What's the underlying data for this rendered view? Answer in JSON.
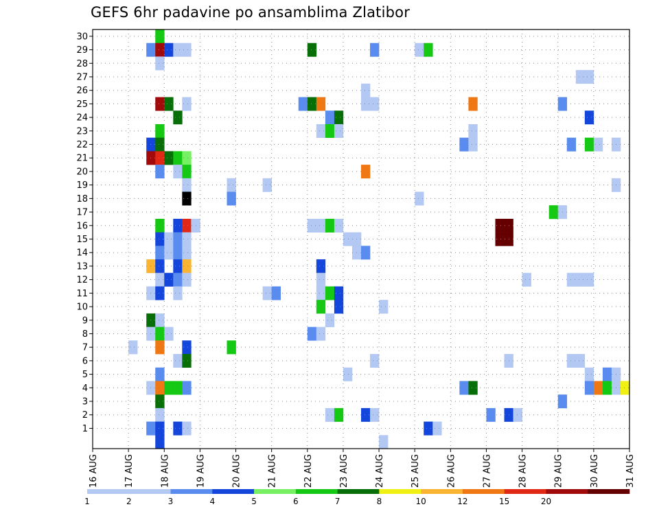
{
  "chart_data": {
    "type": "heatmap",
    "title": "GEFS 6hr padavine po ansamblima Zlatibor",
    "x_ticks": [
      "16 AUG",
      "17 AUG",
      "18 AUG",
      "19 AUG",
      "20 AUG",
      "21 AUG",
      "22 AUG",
      "23 AUG",
      "24 AUG",
      "25 AUG",
      "26 AUG",
      "27 AUG",
      "28 AUG",
      "29 AUG",
      "30 AUG",
      "31 AUG"
    ],
    "x_range_days": [
      16,
      31
    ],
    "y_ticks": [
      1,
      2,
      3,
      4,
      5,
      6,
      7,
      8,
      9,
      10,
      11,
      12,
      13,
      14,
      15,
      16,
      17,
      18,
      19,
      20,
      21,
      22,
      23,
      24,
      25,
      26,
      27,
      28,
      29,
      30
    ],
    "y_range": [
      0,
      30
    ],
    "grid": true,
    "legend_position": "bottom",
    "legend": {
      "labels": [
        "1",
        "2",
        "3",
        "4",
        "5",
        "6",
        "7",
        "8",
        "10",
        "12",
        "15",
        "20"
      ],
      "colors": [
        "#b4c8f4",
        "#5a8cf0",
        "#1446dc",
        "#78f064",
        "#14c814",
        "#086e08",
        "#f0f014",
        "#fab432",
        "#f07814",
        "#e02814",
        "#a00a0a",
        "#640000"
      ]
    },
    "cells_note_units": "time (day of month, 6-hour steps), ensemble member, precipitation class 1-13 (1 = below first legend label)",
    "cells": [
      [
        17.0,
        7,
        1
      ],
      [
        17.5,
        29,
        2
      ],
      [
        17.5,
        22,
        3
      ],
      [
        17.5,
        21,
        11
      ],
      [
        17.5,
        13,
        8
      ],
      [
        17.5,
        11,
        1
      ],
      [
        17.5,
        9,
        6
      ],
      [
        17.5,
        8,
        1
      ],
      [
        17.5,
        4,
        1
      ],
      [
        17.5,
        1,
        2
      ],
      [
        17.75,
        30,
        5
      ],
      [
        17.75,
        29,
        11
      ],
      [
        17.75,
        28,
        1
      ],
      [
        17.75,
        25,
        11
      ],
      [
        17.75,
        23,
        5
      ],
      [
        17.75,
        22,
        6
      ],
      [
        17.75,
        21,
        10
      ],
      [
        17.75,
        20,
        2
      ],
      [
        17.75,
        16,
        5
      ],
      [
        17.75,
        15,
        3
      ],
      [
        17.75,
        14,
        2
      ],
      [
        17.75,
        13,
        3
      ],
      [
        17.75,
        12,
        1
      ],
      [
        17.75,
        11,
        3
      ],
      [
        17.75,
        9,
        1
      ],
      [
        17.75,
        8,
        5
      ],
      [
        17.75,
        7,
        9
      ],
      [
        17.75,
        5,
        2
      ],
      [
        17.75,
        4,
        9
      ],
      [
        17.75,
        3,
        6
      ],
      [
        17.75,
        2,
        1
      ],
      [
        17.75,
        1,
        3
      ],
      [
        17.75,
        0,
        3
      ],
      [
        18.0,
        29,
        3
      ],
      [
        18.0,
        25,
        6
      ],
      [
        18.0,
        21,
        6
      ],
      [
        18.0,
        15,
        1
      ],
      [
        18.0,
        14,
        1
      ],
      [
        18.0,
        12,
        3
      ],
      [
        18.0,
        8,
        1
      ],
      [
        18.0,
        4,
        5
      ],
      [
        18.25,
        29,
        1
      ],
      [
        18.25,
        24,
        6
      ],
      [
        18.25,
        21,
        5
      ],
      [
        18.25,
        20,
        1
      ],
      [
        18.25,
        16,
        3
      ],
      [
        18.25,
        15,
        2
      ],
      [
        18.25,
        14,
        2
      ],
      [
        18.25,
        13,
        3
      ],
      [
        18.25,
        12,
        2
      ],
      [
        18.25,
        11,
        1
      ],
      [
        18.25,
        6,
        1
      ],
      [
        18.25,
        4,
        5
      ],
      [
        18.25,
        1,
        3
      ],
      [
        18.5,
        29,
        1
      ],
      [
        18.5,
        25,
        1
      ],
      [
        18.5,
        21,
        4
      ],
      [
        18.5,
        20,
        5
      ],
      [
        18.5,
        19,
        1
      ],
      [
        18.5,
        18,
        13
      ],
      [
        18.5,
        16,
        10
      ],
      [
        18.5,
        15,
        1
      ],
      [
        18.5,
        14,
        1
      ],
      [
        18.5,
        13,
        8
      ],
      [
        18.5,
        12,
        1
      ],
      [
        18.5,
        7,
        3
      ],
      [
        18.5,
        6,
        6
      ],
      [
        18.5,
        4,
        2
      ],
      [
        18.5,
        1,
        1
      ],
      [
        18.75,
        16,
        1
      ],
      [
        19.75,
        19,
        1
      ],
      [
        19.75,
        18,
        2
      ],
      [
        19.75,
        7,
        5
      ],
      [
        20.75,
        19,
        1
      ],
      [
        20.75,
        11,
        1
      ],
      [
        21.0,
        11,
        2
      ],
      [
        21.75,
        25,
        2
      ],
      [
        22.0,
        29,
        6
      ],
      [
        22.0,
        25,
        6
      ],
      [
        22.0,
        16,
        1
      ],
      [
        22.0,
        8,
        2
      ],
      [
        22.25,
        25,
        9
      ],
      [
        22.25,
        23,
        1
      ],
      [
        22.25,
        16,
        1
      ],
      [
        22.25,
        13,
        3
      ],
      [
        22.25,
        12,
        1
      ],
      [
        22.25,
        11,
        1
      ],
      [
        22.25,
        10,
        5
      ],
      [
        22.25,
        8,
        1
      ],
      [
        22.5,
        24,
        2
      ],
      [
        22.5,
        23,
        5
      ],
      [
        22.5,
        16,
        5
      ],
      [
        22.5,
        11,
        5
      ],
      [
        22.5,
        9,
        1
      ],
      [
        22.5,
        2,
        1
      ],
      [
        22.75,
        24,
        6
      ],
      [
        22.75,
        23,
        1
      ],
      [
        22.75,
        16,
        1
      ],
      [
        22.75,
        11,
        3
      ],
      [
        22.75,
        10,
        3
      ],
      [
        22.75,
        2,
        5
      ],
      [
        23.0,
        15,
        1
      ],
      [
        23.0,
        5,
        1
      ],
      [
        23.25,
        15,
        1
      ],
      [
        23.25,
        14,
        1
      ],
      [
        23.5,
        26,
        1
      ],
      [
        23.5,
        25,
        1
      ],
      [
        23.5,
        20,
        9
      ],
      [
        23.5,
        14,
        2
      ],
      [
        23.5,
        2,
        3
      ],
      [
        23.75,
        29,
        2
      ],
      [
        23.75,
        25,
        1
      ],
      [
        23.75,
        6,
        1
      ],
      [
        23.75,
        2,
        1
      ],
      [
        24.0,
        10,
        1
      ],
      [
        24.0,
        0,
        1
      ],
      [
        25.0,
        29,
        1
      ],
      [
        25.0,
        18,
        1
      ],
      [
        25.25,
        29,
        5
      ],
      [
        25.25,
        1,
        3
      ],
      [
        25.5,
        1,
        1
      ],
      [
        26.25,
        22,
        2
      ],
      [
        26.25,
        4,
        2
      ],
      [
        26.5,
        25,
        9
      ],
      [
        26.5,
        23,
        1
      ],
      [
        26.5,
        22,
        1
      ],
      [
        26.5,
        4,
        6
      ],
      [
        27.0,
        2,
        2
      ],
      [
        27.25,
        16,
        12
      ],
      [
        27.25,
        15,
        12
      ],
      [
        27.5,
        16,
        12
      ],
      [
        27.5,
        15,
        12
      ],
      [
        27.5,
        6,
        1
      ],
      [
        27.5,
        2,
        3
      ],
      [
        27.75,
        2,
        1
      ],
      [
        28.0,
        12,
        1
      ],
      [
        28.75,
        17,
        5
      ],
      [
        29.0,
        25,
        2
      ],
      [
        29.0,
        17,
        1
      ],
      [
        29.0,
        3,
        2
      ],
      [
        29.25,
        22,
        2
      ],
      [
        29.25,
        12,
        1
      ],
      [
        29.25,
        6,
        1
      ],
      [
        29.5,
        27,
        1
      ],
      [
        29.5,
        12,
        1
      ],
      [
        29.5,
        6,
        1
      ],
      [
        29.75,
        27,
        1
      ],
      [
        29.75,
        24,
        3
      ],
      [
        29.75,
        22,
        5
      ],
      [
        29.75,
        12,
        1
      ],
      [
        29.75,
        5,
        1
      ],
      [
        29.75,
        4,
        2
      ],
      [
        30.0,
        22,
        1
      ],
      [
        30.0,
        4,
        9
      ],
      [
        30.25,
        5,
        2
      ],
      [
        30.25,
        4,
        5
      ],
      [
        30.5,
        22,
        1
      ],
      [
        30.5,
        19,
        1
      ],
      [
        30.5,
        5,
        1
      ],
      [
        30.5,
        4,
        1
      ],
      [
        30.75,
        4,
        7
      ]
    ]
  }
}
